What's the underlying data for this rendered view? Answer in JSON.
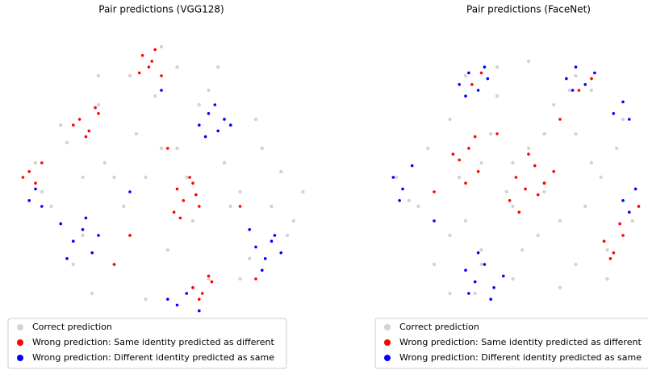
{
  "chart_data": [
    {
      "type": "scatter",
      "title": "Pair predictions (VGG128)",
      "xlim": [
        0,
        100
      ],
      "ylim": [
        0,
        100
      ],
      "legend": "lower left",
      "series": [
        {
          "name": "Correct prediction",
          "color": "#d3d3d3",
          "x": [
            10,
            15,
            20,
            25,
            30,
            35,
            40,
            45,
            50,
            55,
            60,
            65,
            70,
            75,
            80,
            85,
            90,
            95,
            12,
            22,
            32,
            42,
            52,
            62,
            72,
            82,
            92,
            18,
            28,
            38,
            48,
            58,
            68,
            78,
            88,
            30,
            40,
            50,
            60,
            70,
            45,
            55,
            35,
            65,
            25,
            75
          ],
          "y": [
            55,
            40,
            62,
            30,
            75,
            20,
            85,
            50,
            95,
            60,
            35,
            80,
            55,
            15,
            70,
            40,
            30,
            45,
            45,
            20,
            55,
            65,
            25,
            75,
            40,
            60,
            35,
            68,
            10,
            40,
            78,
            50,
            88,
            22,
            52,
            85,
            30,
            60,
            12,
            70,
            8,
            88,
            50,
            15,
            50,
            45
          ]
        },
        {
          "name": "Wrong prediction: Same identity predicted as different",
          "color": "#ff0000",
          "x": [
            44,
            46,
            48,
            43,
            47,
            50,
            55,
            57,
            60,
            62,
            54,
            59,
            61,
            56,
            24,
            27,
            30,
            26,
            29,
            22,
            60,
            63,
            66,
            62,
            65,
            8,
            10,
            12,
            6,
            40,
            75,
            35,
            80,
            52
          ],
          "y": [
            92,
            88,
            94,
            86,
            90,
            85,
            46,
            42,
            48,
            40,
            38,
            50,
            44,
            36,
            70,
            66,
            72,
            64,
            74,
            68,
            12,
            10,
            14,
            8,
            16,
            52,
            48,
            55,
            50,
            30,
            40,
            20,
            15,
            60
          ]
        },
        {
          "name": "Wrong prediction: Different identity predicted as same",
          "color": "#0000ff",
          "x": [
            62,
            65,
            68,
            70,
            64,
            67,
            72,
            80,
            83,
            86,
            82,
            85,
            88,
            78,
            22,
            25,
            28,
            20,
            26,
            30,
            18,
            8,
            12,
            10,
            55,
            58,
            62,
            52,
            50,
            40
          ],
          "y": [
            68,
            72,
            66,
            70,
            64,
            75,
            68,
            26,
            22,
            30,
            18,
            28,
            24,
            32,
            28,
            32,
            24,
            22,
            36,
            30,
            34,
            42,
            40,
            46,
            6,
            10,
            4,
            8,
            80,
            45
          ]
        }
      ]
    },
    {
      "type": "scatter",
      "title": "Pair predictions (FaceNet)",
      "xlim": [
        0,
        100
      ],
      "ylim": [
        0,
        100
      ],
      "legend": "lower left",
      "series": [
        {
          "name": "Correct prediction",
          "color": "#d3d3d3",
          "x": [
            8,
            12,
            18,
            25,
            30,
            35,
            40,
            45,
            50,
            55,
            60,
            65,
            70,
            75,
            80,
            85,
            20,
            28,
            38,
            48,
            58,
            68,
            78,
            33,
            43,
            53,
            63,
            73,
            83,
            15,
            25,
            35,
            45,
            55,
            65,
            75,
            40,
            50,
            60,
            30,
            70,
            45,
            35,
            55,
            25,
            65
          ],
          "y": [
            50,
            42,
            60,
            30,
            85,
            20,
            78,
            55,
            90,
            65,
            35,
            85,
            55,
            15,
            70,
            40,
            20,
            50,
            65,
            25,
            75,
            40,
            60,
            10,
            45,
            30,
            80,
            50,
            35,
            40,
            70,
            55,
            15,
            48,
            20,
            25,
            88,
            60,
            12,
            35,
            80,
            40,
            25,
            45,
            10,
            65
          ]
        },
        {
          "name": "Wrong prediction: Same identity predicted as different",
          "color": "#ff0000",
          "x": [
            46,
            49,
            52,
            55,
            44,
            50,
            58,
            47,
            53,
            28,
            31,
            34,
            26,
            33,
            30,
            74,
            77,
            80,
            76,
            79,
            32,
            35,
            66,
            70,
            40,
            60,
            20,
            85
          ],
          "y": [
            50,
            46,
            54,
            48,
            42,
            58,
            52,
            38,
            44,
            56,
            60,
            52,
            58,
            64,
            48,
            28,
            24,
            30,
            22,
            34,
            82,
            86,
            80,
            84,
            65,
            70,
            45,
            40
          ]
        },
        {
          "name": "Wrong prediction: Different identity predicted as same",
          "color": "#0000ff",
          "x": [
            28,
            31,
            34,
            37,
            30,
            36,
            62,
            65,
            68,
            71,
            64,
            77,
            80,
            82,
            7,
            10,
            13,
            9,
            30,
            33,
            36,
            39,
            42,
            34,
            38,
            31,
            80,
            84,
            82,
            20
          ],
          "y": [
            82,
            86,
            80,
            84,
            78,
            88,
            84,
            88,
            82,
            86,
            80,
            72,
            76,
            70,
            50,
            46,
            54,
            42,
            18,
            14,
            20,
            12,
            16,
            24,
            8,
            10,
            42,
            46,
            38,
            35
          ]
        }
      ]
    }
  ]
}
